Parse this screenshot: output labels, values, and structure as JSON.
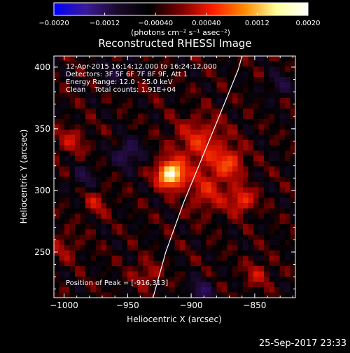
{
  "colorbar": {
    "tick_labels": [
      "−0.0020",
      "−0.0012",
      "−0.00040",
      "0.00040",
      "0.0012",
      "0.0020"
    ],
    "ticks": [
      -0.002,
      -0.0012,
      -0.0004,
      0.0004,
      0.0012,
      0.002
    ],
    "range": [
      -0.002,
      0.002
    ],
    "unit_label": "(photons cm⁻² s⁻¹ asec⁻²)",
    "colors": [
      "#0000ff",
      "#3a1a9a",
      "#1a0a2a",
      "#000000",
      "#7a0000",
      "#ff1a00",
      "#ff8a00",
      "#ffff9a",
      "#ffffff"
    ]
  },
  "chart_data": {
    "type": "heatmap",
    "title": "Reconstructed RHESSI Image",
    "xlabel": "Heliocentric X (arcsec)",
    "ylabel": "Heliocentric Y (arcsec)",
    "xlim": [
      -1008,
      -818
    ],
    "ylim": [
      213,
      409
    ],
    "x_ticks": [
      -1000,
      -950,
      -900,
      -850
    ],
    "x_tick_labels": [
      "−1000",
      "−950",
      "−900",
      "−850"
    ],
    "y_ticks": [
      250,
      300,
      350,
      400
    ],
    "y_tick_labels": [
      "250",
      "300",
      "350",
      "400"
    ],
    "annotations": [
      "12-Apr-2015 16:14:12.000 to 16:24:12.000",
      "Detectors: 3F 5F 6F 7F 8F 9F, Att 1",
      "Energy Range: 12.0 - 25.0 keV",
      "Clean    Total counts: 1.91E+04"
    ],
    "peak_label": "Position of Peak = [-916,313]",
    "peak": [
      -916,
      313
    ],
    "limb_curve": [
      [
        -930,
        213
      ],
      [
        -920,
        250
      ],
      [
        -906,
        290
      ],
      [
        -890,
        330
      ],
      [
        -874,
        370
      ],
      [
        -863,
        398
      ],
      [
        -860,
        409
      ]
    ],
    "sources": [
      {
        "x": -916,
        "y": 313,
        "value": 0.002,
        "sigma": 7
      },
      {
        "x": -893,
        "y": 338,
        "value": 0.0006,
        "sigma": 14
      },
      {
        "x": -870,
        "y": 322,
        "value": 0.0007,
        "sigma": 8
      },
      {
        "x": -860,
        "y": 292,
        "value": 0.0007,
        "sigma": 7
      },
      {
        "x": -887,
        "y": 300,
        "value": 0.0005,
        "sigma": 12
      },
      {
        "x": -995,
        "y": 340,
        "value": 0.0004,
        "sigma": 8
      },
      {
        "x": -975,
        "y": 290,
        "value": 0.0004,
        "sigma": 7
      },
      {
        "x": -1000,
        "y": 255,
        "value": 0.0003,
        "sigma": 8
      },
      {
        "x": -935,
        "y": 232,
        "value": 0.0004,
        "sigma": 7
      },
      {
        "x": -848,
        "y": 232,
        "value": 0.0004,
        "sigma": 7
      },
      {
        "x": -950,
        "y": 330,
        "value": -0.0006,
        "sigma": 8
      },
      {
        "x": -985,
        "y": 310,
        "value": -0.0004,
        "sigma": 7
      },
      {
        "x": -892,
        "y": 218,
        "value": -0.0006,
        "sigma": 7
      },
      {
        "x": -830,
        "y": 385,
        "value": -0.0004,
        "sigma": 7
      },
      {
        "x": -960,
        "y": 395,
        "value": -0.0003,
        "sigma": 8
      }
    ]
  },
  "timestamp": "25-Sep-2017 23:33"
}
